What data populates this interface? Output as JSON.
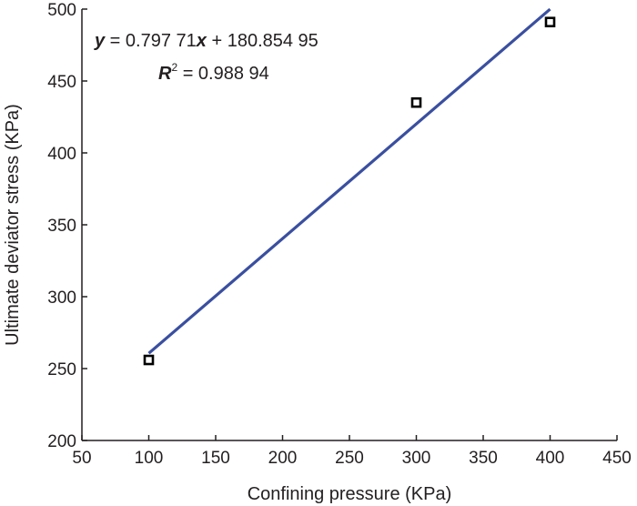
{
  "chart_data": {
    "type": "scatter",
    "xlabel": "Confining pressure (KPa)",
    "ylabel": "Ultimate deviator stress (KPa)",
    "xlim": [
      50,
      450
    ],
    "ylim": [
      200,
      500
    ],
    "x_ticks": [
      50,
      100,
      150,
      200,
      250,
      300,
      350,
      400,
      450
    ],
    "y_ticks": [
      200,
      250,
      300,
      350,
      400,
      450,
      500
    ],
    "x_tick_labels": [
      "50",
      "100",
      "150",
      "200",
      "250",
      "300",
      "350",
      "400",
      "450"
    ],
    "y_tick_labels": [
      "200",
      "250",
      "300",
      "350",
      "400",
      "450",
      "500"
    ],
    "grid": false,
    "points": [
      {
        "x": 100,
        "y": 256
      },
      {
        "x": 300,
        "y": 435
      },
      {
        "x": 400,
        "y": 491
      }
    ],
    "fit_line": {
      "slope": 0.79771,
      "intercept": 180.85495,
      "x_range": [
        100,
        400
      ],
      "color": "#3a4fa0"
    },
    "marker_color": "#000000",
    "annotations": {
      "equation": {
        "y_var": "y",
        "equals_slope": " = 0.797 71",
        "x_var": "x",
        "plus_intercept": " + 180.854 95"
      },
      "r_squared": {
        "var": "R",
        "exponent": "2",
        "value": " = 0.988 94"
      }
    }
  }
}
